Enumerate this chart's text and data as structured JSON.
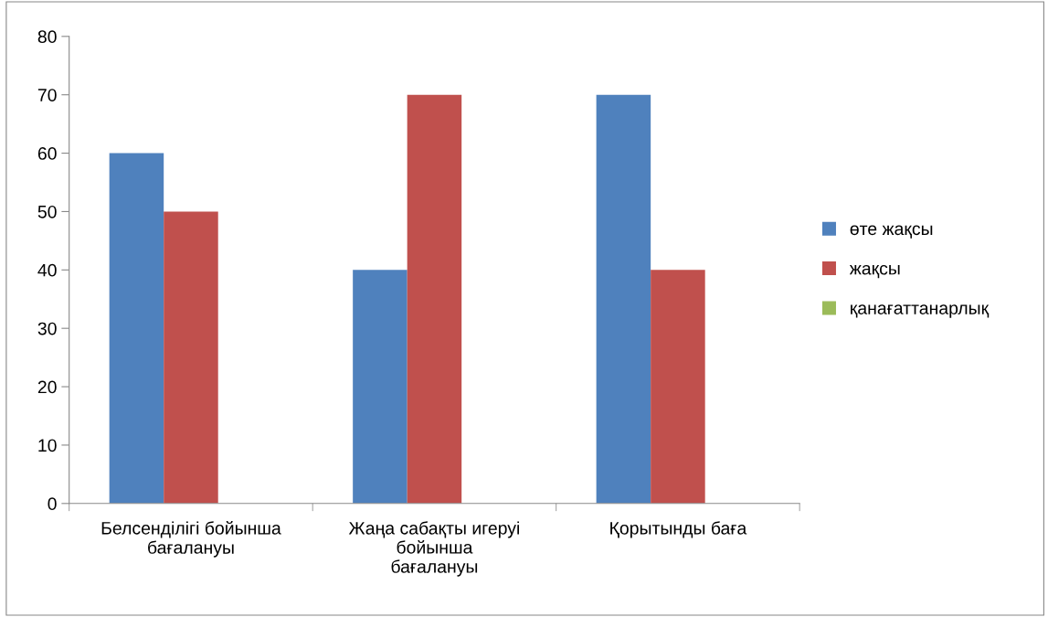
{
  "chart_data": {
    "type": "bar",
    "categories": [
      "Белсенділігі бойынша\nбағалануы",
      "Жаңа сабақты игеруі\nбойынша\nбағалануы",
      "Қорытынды баға"
    ],
    "series": [
      {
        "name": "өте жақсы",
        "color": "#4f81bd",
        "values": [
          60,
          40,
          70
        ]
      },
      {
        "name": "жақсы",
        "color": "#c0504d",
        "values": [
          50,
          70,
          40
        ]
      },
      {
        "name": "қанағаттанарлық",
        "color": "#9bbb59",
        "values": [
          0,
          0,
          0
        ]
      }
    ],
    "ylim": [
      0,
      80
    ],
    "yticks": [
      0,
      10,
      20,
      30,
      40,
      50,
      60,
      70,
      80
    ],
    "grid": false,
    "legend": "right"
  }
}
